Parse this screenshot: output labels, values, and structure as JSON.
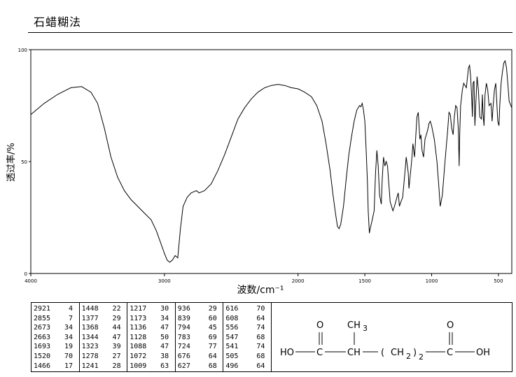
{
  "header": {
    "title": "石蜡糊法"
  },
  "chart_data": {
    "type": "line",
    "title": "",
    "xlabel": "波数/cm⁻¹",
    "ylabel": "透过率/%",
    "xlim": [
      4000,
      400
    ],
    "ylim": [
      0,
      100
    ],
    "xticks": [
      "4000",
      "3000",
      "2000",
      "1500",
      "1000",
      "500"
    ],
    "yticks": [
      "0",
      "50",
      "100"
    ],
    "series": [
      {
        "points": [
          [
            4000,
            71
          ],
          [
            3900,
            76
          ],
          [
            3800,
            80
          ],
          [
            3700,
            83
          ],
          [
            3620,
            83.5
          ],
          [
            3550,
            81
          ],
          [
            3500,
            76
          ],
          [
            3450,
            65
          ],
          [
            3400,
            52
          ],
          [
            3350,
            43
          ],
          [
            3300,
            37
          ],
          [
            3250,
            33
          ],
          [
            3200,
            30
          ],
          [
            3150,
            27
          ],
          [
            3100,
            24
          ],
          [
            3060,
            19
          ],
          [
            3030,
            14
          ],
          [
            3000,
            9
          ],
          [
            2980,
            6
          ],
          [
            2960,
            5
          ],
          [
            2940,
            6
          ],
          [
            2920,
            8
          ],
          [
            2900,
            7
          ],
          [
            2880,
            20
          ],
          [
            2860,
            30
          ],
          [
            2830,
            34
          ],
          [
            2800,
            36
          ],
          [
            2760,
            37
          ],
          [
            2740,
            36
          ],
          [
            2700,
            37
          ],
          [
            2650,
            40
          ],
          [
            2600,
            46
          ],
          [
            2550,
            53
          ],
          [
            2500,
            61
          ],
          [
            2450,
            69
          ],
          [
            2400,
            74
          ],
          [
            2350,
            78
          ],
          [
            2300,
            81
          ],
          [
            2250,
            83
          ],
          [
            2200,
            84
          ],
          [
            2150,
            84.5
          ],
          [
            2100,
            84
          ],
          [
            2050,
            83
          ],
          [
            2000,
            82.5
          ],
          [
            1950,
            81
          ],
          [
            1900,
            79
          ],
          [
            1860,
            75
          ],
          [
            1820,
            68
          ],
          [
            1790,
            58
          ],
          [
            1760,
            46
          ],
          [
            1740,
            36
          ],
          [
            1720,
            27
          ],
          [
            1705,
            21
          ],
          [
            1693,
            20
          ],
          [
            1680,
            22
          ],
          [
            1660,
            30
          ],
          [
            1640,
            42
          ],
          [
            1620,
            53
          ],
          [
            1600,
            61
          ],
          [
            1580,
            68
          ],
          [
            1560,
            73
          ],
          [
            1540,
            75
          ],
          [
            1530,
            74.5
          ],
          [
            1520,
            76
          ],
          [
            1510,
            73
          ],
          [
            1500,
            68
          ],
          [
            1490,
            55
          ],
          [
            1480,
            40
          ],
          [
            1475,
            28
          ],
          [
            1466,
            18
          ],
          [
            1460,
            20
          ],
          [
            1448,
            23
          ],
          [
            1430,
            28
          ],
          [
            1420,
            45
          ],
          [
            1410,
            55
          ],
          [
            1400,
            48
          ],
          [
            1390,
            35
          ],
          [
            1377,
            31
          ],
          [
            1370,
            42
          ],
          [
            1360,
            52
          ],
          [
            1350,
            48
          ],
          [
            1340,
            50
          ],
          [
            1330,
            48
          ],
          [
            1323,
            42
          ],
          [
            1310,
            32
          ],
          [
            1290,
            28
          ],
          [
            1278,
            30
          ],
          [
            1260,
            34
          ],
          [
            1250,
            36
          ],
          [
            1241,
            30
          ],
          [
            1230,
            32
          ],
          [
            1217,
            34
          ],
          [
            1200,
            45
          ],
          [
            1190,
            52
          ],
          [
            1175,
            45
          ],
          [
            1170,
            38
          ],
          [
            1150,
            50
          ],
          [
            1140,
            58
          ],
          [
            1128,
            52
          ],
          [
            1120,
            60
          ],
          [
            1110,
            70
          ],
          [
            1100,
            72
          ],
          [
            1088,
            60
          ],
          [
            1080,
            62
          ],
          [
            1072,
            55
          ],
          [
            1060,
            52
          ],
          [
            1050,
            60
          ],
          [
            1040,
            62
          ],
          [
            1030,
            64
          ],
          [
            1020,
            67
          ],
          [
            1010,
            68
          ],
          [
            1000,
            66
          ],
          [
            980,
            60
          ],
          [
            960,
            50
          ],
          [
            945,
            38
          ],
          [
            936,
            30
          ],
          [
            920,
            35
          ],
          [
            900,
            50
          ],
          [
            880,
            64
          ],
          [
            870,
            72
          ],
          [
            860,
            71
          ],
          [
            850,
            65
          ],
          [
            839,
            62
          ],
          [
            830,
            70
          ],
          [
            820,
            75
          ],
          [
            810,
            74
          ],
          [
            800,
            64
          ],
          [
            794,
            48
          ],
          [
            790,
            62
          ],
          [
            783,
            75
          ],
          [
            770,
            82
          ],
          [
            760,
            85
          ],
          [
            750,
            84
          ],
          [
            740,
            83
          ],
          [
            724,
            92
          ],
          [
            716,
            93
          ],
          [
            708,
            88
          ],
          [
            700,
            78
          ],
          [
            695,
            70
          ],
          [
            690,
            85
          ],
          [
            683,
            86
          ],
          [
            676,
            66
          ],
          [
            670,
            75
          ],
          [
            660,
            88
          ],
          [
            650,
            82
          ],
          [
            640,
            70
          ],
          [
            627,
            69
          ],
          [
            620,
            80
          ],
          [
            616,
            72
          ],
          [
            608,
            66
          ],
          [
            600,
            80
          ],
          [
            590,
            85
          ],
          [
            580,
            82
          ],
          [
            570,
            75
          ],
          [
            556,
            76
          ],
          [
            547,
            68
          ],
          [
            541,
            74
          ],
          [
            530,
            82
          ],
          [
            520,
            85
          ],
          [
            505,
            68
          ],
          [
            496,
            66
          ],
          [
            490,
            75
          ],
          [
            480,
            85
          ],
          [
            470,
            90
          ],
          [
            460,
            94
          ],
          [
            450,
            95
          ],
          [
            440,
            92
          ],
          [
            430,
            85
          ],
          [
            420,
            77
          ],
          [
            400,
            74
          ]
        ]
      }
    ],
    "peak_table": [
      [
        [
          "2921",
          "4"
        ],
        [
          "2855",
          "7"
        ],
        [
          "2673",
          "34"
        ],
        [
          "2663",
          "34"
        ],
        [
          "1693",
          "19"
        ],
        [
          "1520",
          "70"
        ],
        [
          "1466",
          "17"
        ]
      ],
      [
        [
          "1448",
          "22"
        ],
        [
          "1377",
          "29"
        ],
        [
          "1368",
          "44"
        ],
        [
          "1344",
          "47"
        ],
        [
          "1323",
          "39"
        ],
        [
          "1278",
          "27"
        ],
        [
          "1241",
          "28"
        ]
      ],
      [
        [
          "1217",
          "30"
        ],
        [
          "1173",
          "34"
        ],
        [
          "1136",
          "47"
        ],
        [
          "1128",
          "50"
        ],
        [
          "1088",
          "47"
        ],
        [
          "1072",
          "38"
        ],
        [
          "1009",
          "63"
        ]
      ],
      [
        [
          "936",
          "29"
        ],
        [
          "839",
          "60"
        ],
        [
          "794",
          "45"
        ],
        [
          "783",
          "69"
        ],
        [
          "724",
          "77"
        ],
        [
          "676",
          "64"
        ],
        [
          "627",
          "68"
        ]
      ],
      [
        [
          "616",
          "70"
        ],
        [
          "608",
          "64"
        ],
        [
          "556",
          "74"
        ],
        [
          "547",
          "68"
        ],
        [
          "541",
          "74"
        ],
        [
          "505",
          "68"
        ],
        [
          "496",
          "64"
        ]
      ]
    ]
  },
  "structure": {
    "ho_left": "HO",
    "c1": "C",
    "o1": "O",
    "ch": "CH",
    "ch3": "CH",
    "ch3_sub": "3",
    "paren_open": "(",
    "ch2": "CH",
    "ch2_sub": "2",
    "paren_close": ")",
    "n_sub": "2",
    "c2": "C",
    "o2": "O",
    "oh_right": "OH"
  }
}
